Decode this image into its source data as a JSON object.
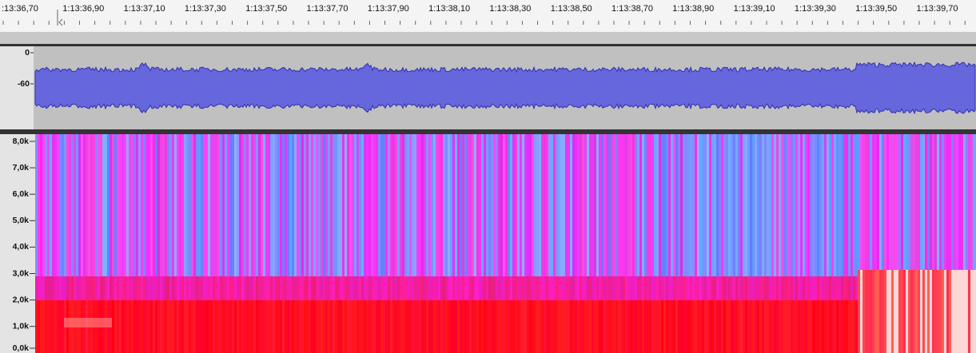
{
  "timeline": {
    "labels": [
      ":13:36,70",
      "1:13:36,90",
      "1:13:37,10",
      "1:13:37,30",
      "1:13:37,50",
      "1:13:37,70",
      "1:13:37,90",
      "1:13:38,10",
      "1:13:38,30",
      "1:13:38,50",
      "1:13:38,70",
      "1:13:38,90",
      "1:13:39,10",
      "1:13:39,30",
      "1:13:39,50",
      "1:13:39,70"
    ]
  },
  "waveform": {
    "axis_labels": [
      "0",
      "-60"
    ]
  },
  "spectrogram": {
    "axis_labels": [
      "8,0k",
      "7,0k",
      "6,0k",
      "5,0k",
      "4,0k",
      "3,0k",
      "2,0k",
      "1,0k",
      "0,0k"
    ]
  }
}
